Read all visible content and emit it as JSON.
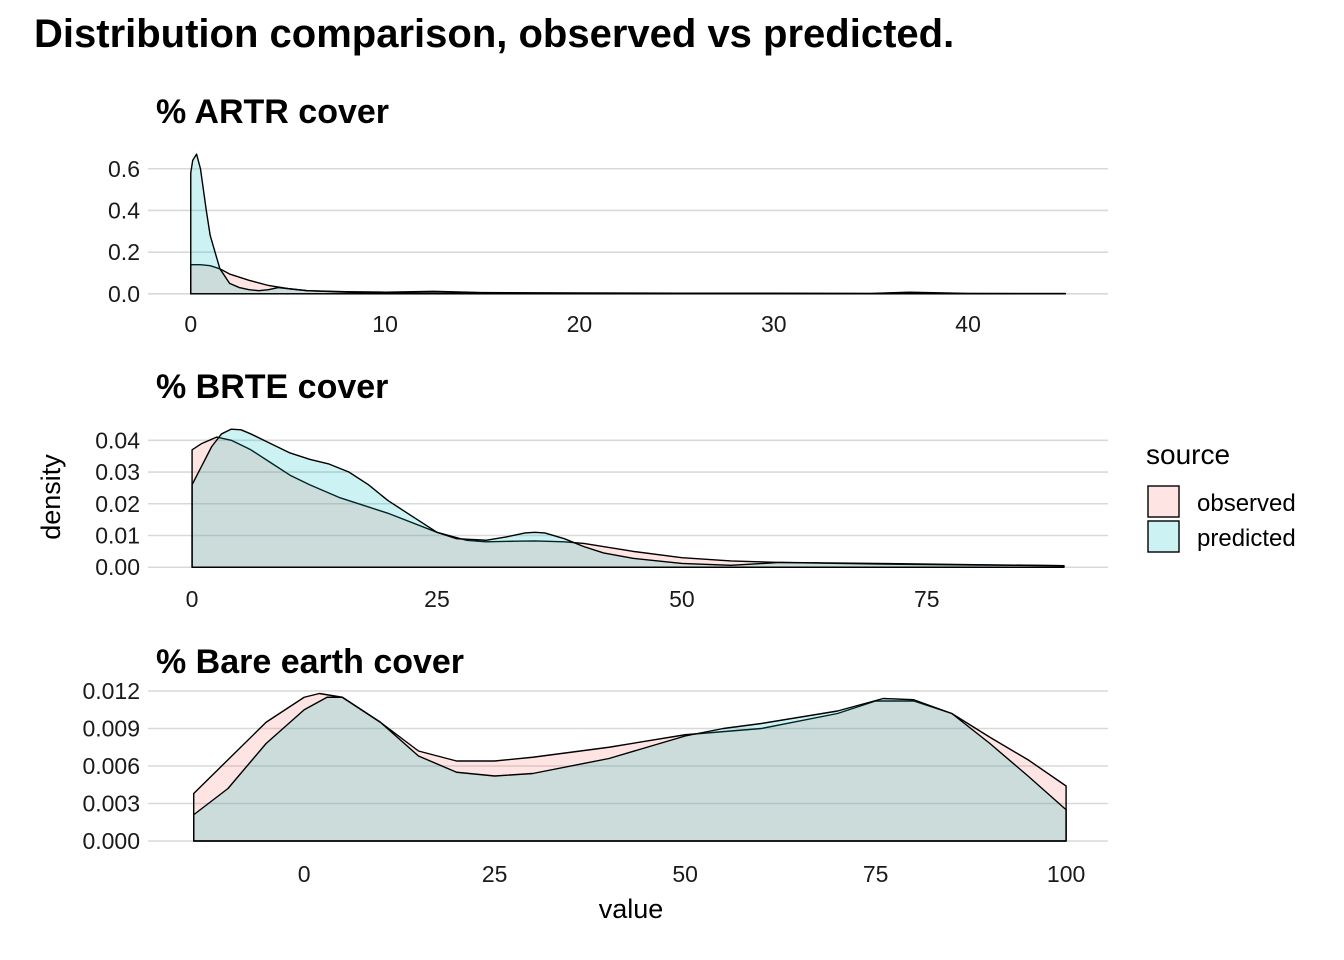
{
  "title": "Distribution comparison, observed vs predicted.",
  "chart_data": {
    "type": "area",
    "subtype": "density",
    "colors": {
      "observed": "#F8766D",
      "predicted": "#00BFC4",
      "outline": "#000000",
      "grid": "#d9d9d9"
    },
    "legend": {
      "title": "source",
      "placement": "right",
      "labels": [
        "observed",
        "predicted"
      ]
    },
    "xlabel": "value",
    "ylabel": "density",
    "panels": [
      {
        "title": "% ARTR cover",
        "xlim": [
          -2.2,
          47.2
        ],
        "ylim": [
          -0.02,
          0.69
        ],
        "xticks": [
          0,
          10,
          20,
          30,
          40
        ],
        "yticks": [
          0.0,
          0.2,
          0.4,
          0.6
        ],
        "ytick_labels": [
          "0.0",
          "0.2",
          "0.4",
          "0.6"
        ],
        "series": [
          {
            "name": "observed",
            "x": [
              0,
              0.5,
              1,
              1.5,
              2,
              3,
              4,
              5,
              6,
              8,
              10,
              12.5,
              15,
              20,
              25,
              30,
              35,
              37,
              40,
              45
            ],
            "y": [
              0.14,
              0.14,
              0.135,
              0.12,
              0.095,
              0.065,
              0.04,
              0.025,
              0.015,
              0.01,
              0.008,
              0.012,
              0.006,
              0.004,
              0.003,
              0.003,
              0.002,
              0.008,
              0.002,
              0.001
            ]
          },
          {
            "name": "predicted",
            "x": [
              0,
              0.1,
              0.3,
              0.5,
              0.8,
              1,
              1.5,
              2,
              2.5,
              3,
              3.5,
              4,
              4.5,
              5,
              6,
              8,
              10,
              15,
              20,
              25,
              30,
              35,
              40,
              45
            ],
            "y": [
              0.58,
              0.64,
              0.67,
              0.6,
              0.4,
              0.28,
              0.12,
              0.05,
              0.03,
              0.02,
              0.015,
              0.02,
              0.03,
              0.025,
              0.015,
              0.008,
              0.005,
              0.003,
              0.002,
              0.002,
              0.001,
              0.001,
              0.001,
              0.001
            ]
          }
        ]
      },
      {
        "title": "% BRTE cover",
        "xlim": [
          -4.5,
          93.5
        ],
        "ylim": [
          -0.0015,
          0.0445
        ],
        "xticks": [
          0,
          25,
          50,
          75
        ],
        "yticks": [
          0.0,
          0.01,
          0.02,
          0.03,
          0.04
        ],
        "ytick_labels": [
          "0.00",
          "0.01",
          "0.02",
          "0.03",
          "0.04"
        ],
        "series": [
          {
            "name": "observed",
            "x": [
              0,
              1,
              2.5,
              4,
              6,
              8,
              10,
              12,
              15,
              18,
              20,
              25,
              28,
              30,
              33,
              35,
              38,
              40,
              45,
              50,
              55,
              60,
              70,
              80,
              89
            ],
            "y": [
              0.037,
              0.039,
              0.041,
              0.04,
              0.037,
              0.033,
              0.029,
              0.026,
              0.022,
              0.019,
              0.017,
              0.011,
              0.0085,
              0.008,
              0.0082,
              0.0083,
              0.008,
              0.0075,
              0.005,
              0.003,
              0.002,
              0.0015,
              0.001,
              0.0007,
              0.0005
            ]
          },
          {
            "name": "predicted",
            "x": [
              0,
              1,
              2,
              3,
              4,
              5,
              6,
              8,
              10,
              12,
              14,
              16,
              18,
              20,
              22,
              25,
              27,
              30,
              32,
              34,
              35,
              36,
              38,
              40,
              42,
              45,
              50,
              55,
              60,
              70,
              80,
              89
            ],
            "y": [
              0.026,
              0.032,
              0.038,
              0.042,
              0.0435,
              0.0433,
              0.042,
              0.039,
              0.036,
              0.034,
              0.0325,
              0.03,
              0.026,
              0.021,
              0.017,
              0.011,
              0.009,
              0.0085,
              0.0095,
              0.0108,
              0.011,
              0.0108,
              0.009,
              0.0065,
              0.0045,
              0.0028,
              0.0012,
              0.0006,
              0.0015,
              0.0012,
              0.0008,
              0.0005
            ]
          }
        ]
      },
      {
        "title": "% Bare earth cover",
        "xlim": [
          -20.5,
          105.5
        ],
        "ylim": [
          -0.0004,
          0.0124
        ],
        "xticks": [
          0,
          25,
          50,
          75,
          100
        ],
        "yticks": [
          0.0,
          0.003,
          0.006,
          0.009,
          0.012
        ],
        "ytick_labels": [
          "0.000",
          "0.003",
          "0.006",
          "0.009",
          "0.012"
        ],
        "series": [
          {
            "name": "observed",
            "x": [
              -14.5,
              -10,
              -5,
              0,
              2,
              5,
              10,
              15,
              20,
              25,
              30,
              40,
              50,
              60,
              70,
              75,
              80,
              85,
              90,
              95,
              100
            ],
            "y": [
              0.0038,
              0.0065,
              0.0095,
              0.0115,
              0.0118,
              0.0115,
              0.0095,
              0.0072,
              0.0064,
              0.0064,
              0.0067,
              0.0075,
              0.0085,
              0.009,
              0.0102,
              0.0112,
              0.0112,
              0.0102,
              0.0083,
              0.0065,
              0.0044
            ]
          },
          {
            "name": "predicted",
            "x": [
              -14.5,
              -10,
              -5,
              0,
              3,
              5,
              10,
              15,
              20,
              25,
              30,
              40,
              50,
              55,
              60,
              70,
              76,
              80,
              85,
              90,
              95,
              100
            ],
            "y": [
              0.0021,
              0.0042,
              0.0078,
              0.0105,
              0.0115,
              0.0115,
              0.0095,
              0.0068,
              0.0055,
              0.0052,
              0.0054,
              0.0066,
              0.0084,
              0.009,
              0.0094,
              0.0104,
              0.0114,
              0.0113,
              0.0102,
              0.0078,
              0.0052,
              0.0025
            ]
          }
        ]
      }
    ]
  }
}
